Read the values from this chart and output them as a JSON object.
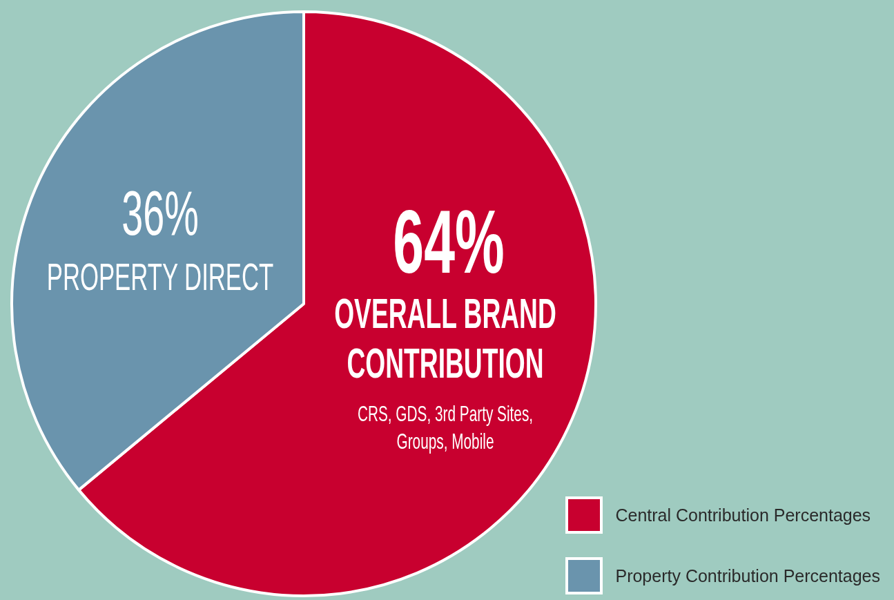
{
  "chart_data": {
    "type": "pie",
    "categories": [
      "Central Contribution Percentages",
      "Property Contribution Percentages"
    ],
    "values": [
      64,
      36
    ],
    "colors": [
      "#c8002f",
      "#6a94ad"
    ],
    "value_labels": [
      "64%",
      "36%"
    ],
    "annotations": [
      "OVERALL BRAND CONTRIBUTION",
      "CRS, GDS, 3rd Party Sites, Groups, Mobile",
      "PROPERTY DIRECT"
    ],
    "legend": "bottom right"
  }
}
